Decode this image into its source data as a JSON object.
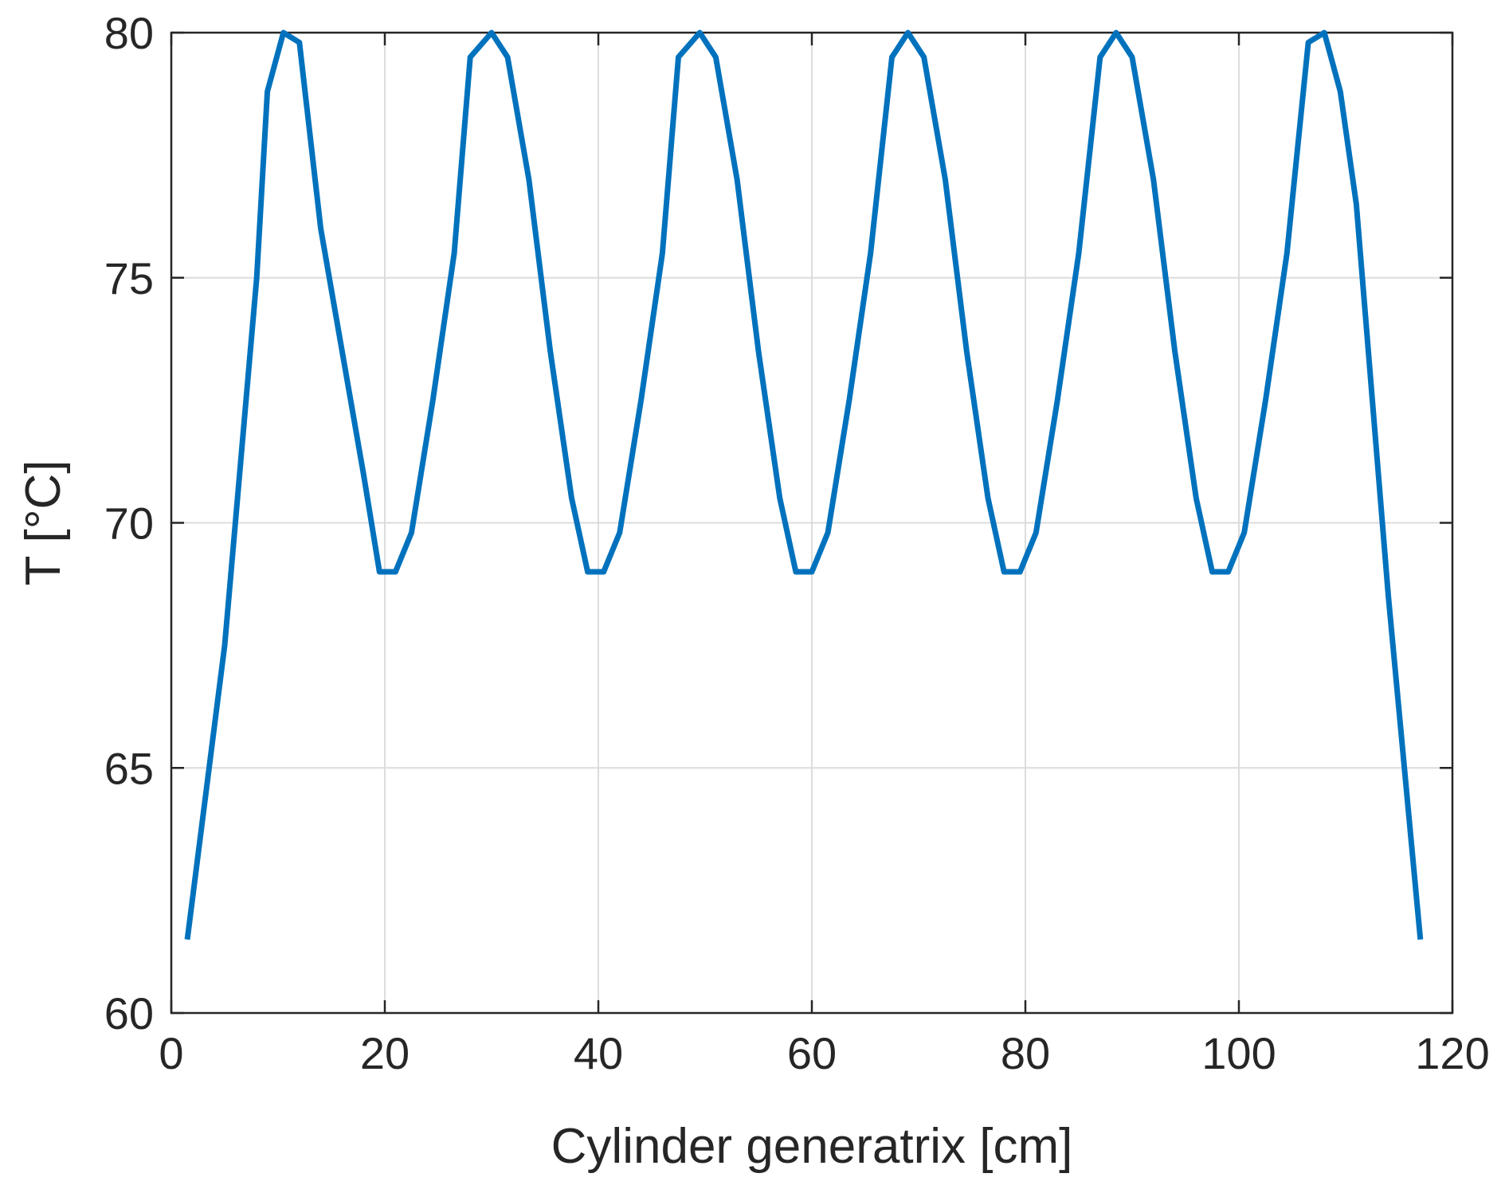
{
  "chart_data": {
    "type": "line",
    "xlabel": "Cylinder generatrix [cm]",
    "ylabel": "T [°C]",
    "xlim": [
      0,
      120
    ],
    "ylim": [
      60,
      80
    ],
    "xticks": [
      0,
      20,
      40,
      60,
      80,
      100,
      120
    ],
    "yticks": [
      60,
      65,
      70,
      75,
      80
    ],
    "xtick_labels": [
      "0",
      "20",
      "40",
      "60",
      "80",
      "100",
      "120"
    ],
    "ytick_labels": [
      "60",
      "65",
      "70",
      "75",
      "80"
    ],
    "grid": true,
    "series_color": "#0072BD",
    "series": [
      {
        "x": [
          1.5,
          5.0,
          8.0,
          9.0,
          10.5,
          12.0,
          14.0,
          16.0,
          18.0,
          19.5,
          21.0,
          22.5,
          24.5,
          26.5,
          28.0,
          30.0,
          31.5,
          33.5,
          35.5,
          37.5,
          39.0,
          40.5,
          42.0,
          44.0,
          46.0,
          47.5,
          49.5,
          51.0,
          53.0,
          55.0,
          57.0,
          58.5,
          60.0,
          61.5,
          63.5,
          65.5,
          67.5,
          69.0,
          70.5,
          72.5,
          74.5,
          76.5,
          78.0,
          79.5,
          81.0,
          83.0,
          85.0,
          87.0,
          88.5,
          90.0,
          92.0,
          94.0,
          96.0,
          97.5,
          99.0,
          100.5,
          102.5,
          104.5,
          106.5,
          108.0,
          109.5,
          111.0,
          114.0,
          117.0
        ],
        "y": [
          61.5,
          67.5,
          75.0,
          78.8,
          80.0,
          79.8,
          76.0,
          73.5,
          71.0,
          69.0,
          69.0,
          69.8,
          72.5,
          75.5,
          79.5,
          80.0,
          79.5,
          77.0,
          73.5,
          70.5,
          69.0,
          69.0,
          69.8,
          72.5,
          75.5,
          79.5,
          80.0,
          79.5,
          77.0,
          73.5,
          70.5,
          69.0,
          69.0,
          69.8,
          72.5,
          75.5,
          79.5,
          80.0,
          79.5,
          77.0,
          73.5,
          70.5,
          69.0,
          69.0,
          69.8,
          72.5,
          75.5,
          79.5,
          80.0,
          79.5,
          77.0,
          73.5,
          70.5,
          69.0,
          69.0,
          69.8,
          72.5,
          75.5,
          79.8,
          80.0,
          78.8,
          76.5,
          68.5,
          61.5
        ]
      }
    ]
  }
}
